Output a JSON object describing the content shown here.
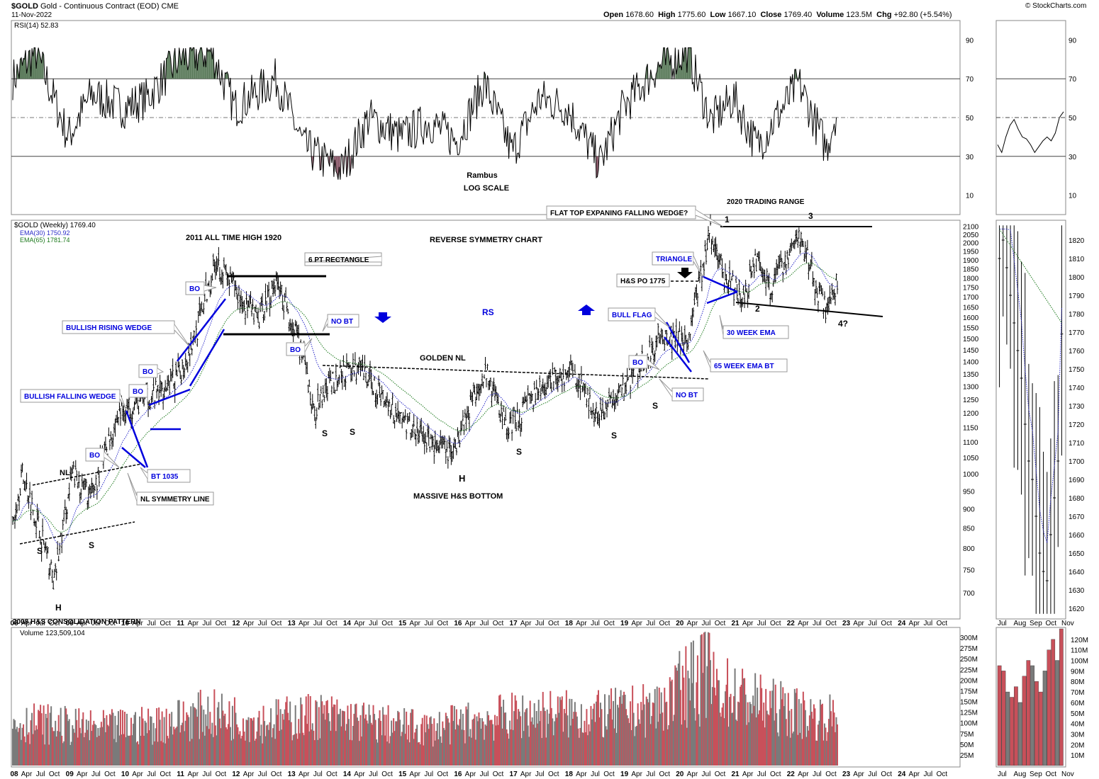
{
  "header": {
    "symbol": "$GOLD",
    "name": "Gold - Continuous Contract (EOD)",
    "exchange": "CME",
    "date": "11-Nov-2022",
    "open_label": "Open",
    "open": "1678.60",
    "high_label": "High",
    "high": "1775.60",
    "low_label": "Low",
    "low": "1667.10",
    "close_label": "Close",
    "close": "1769.40",
    "volume_label": "Volume",
    "volume": "123.5M",
    "chg_label": "Chg",
    "chg": "+92.80 (+5.54%)",
    "watermark": "© StockCharts.com"
  },
  "colors": {
    "price": "#000000",
    "annotation_blue": "#0000dd",
    "ema30": "#2a2ac8",
    "ema65": "#1e7a1e",
    "rsi_fill": "#5a7a5a",
    "rsi_oversold_fill": "#8a5a6a",
    "vol_up": "#7a7a7a",
    "vol_down": "#c8505a"
  },
  "chart_data": [
    {
      "type": "line",
      "panel": "rsi",
      "legend": "RSI(14) 52.83",
      "ylim": [
        0,
        100
      ],
      "yticks": [
        10,
        30,
        50,
        70,
        90
      ],
      "levels": [
        30,
        50,
        70
      ],
      "overlay_text": [
        "Rambus",
        "LOG SCALE"
      ],
      "x": [
        "2008-01",
        "2008-06",
        "2009-01",
        "2009-06",
        "2010-01",
        "2010-06",
        "2011-01",
        "2011-08",
        "2012-01",
        "2012-10",
        "2013-04",
        "2013-12",
        "2014-06",
        "2015-01",
        "2015-07",
        "2016-01",
        "2016-07",
        "2017-01",
        "2017-07",
        "2018-01",
        "2018-08",
        "2019-01",
        "2019-08",
        "2020-03",
        "2020-08",
        "2021-01",
        "2021-06",
        "2022-01",
        "2022-03",
        "2022-09",
        "2022-11"
      ],
      "values": [
        70,
        84,
        40,
        62,
        55,
        60,
        80,
        84,
        55,
        70,
        35,
        22,
        50,
        40,
        48,
        38,
        68,
        32,
        60,
        55,
        26,
        55,
        75,
        84,
        48,
        60,
        35,
        60,
        68,
        34,
        52
      ]
    },
    {
      "type": "candlestick",
      "panel": "price",
      "legend": "$GOLD (Weekly) 1769.40",
      "scale": "log",
      "ylim": [
        650,
        2130
      ],
      "yticks": [
        700,
        750,
        800,
        850,
        900,
        950,
        1000,
        1050,
        1100,
        1150,
        1200,
        1250,
        1300,
        1350,
        1400,
        1450,
        1500,
        1550,
        1600,
        1650,
        1700,
        1750,
        1800,
        1850,
        1900,
        1950,
        2000,
        2050,
        2100
      ],
      "xticks": [
        "08",
        "Apr",
        "Jul",
        "Oct",
        "09",
        "Apr",
        "Jul",
        "Oct",
        "10",
        "Apr",
        "Jul",
        "Oct",
        "11",
        "Apr",
        "Jul",
        "Oct",
        "12",
        "Apr",
        "Jul",
        "Oct",
        "13",
        "Apr",
        "Jul",
        "Oct",
        "14",
        "Apr",
        "Jul",
        "Oct",
        "15",
        "Apr",
        "Jul",
        "Oct",
        "16",
        "Apr",
        "Jul",
        "Oct",
        "17",
        "Apr",
        "Jul",
        "Oct",
        "18",
        "Apr",
        "Jul",
        "Oct",
        "19",
        "Apr",
        "Jul",
        "Oct",
        "20",
        "Apr",
        "Jul",
        "Oct",
        "21",
        "Apr",
        "Jul",
        "Oct",
        "22",
        "Apr",
        "Jul",
        "Oct",
        "23",
        "Apr",
        "Jul",
        "Oct",
        "24",
        "Apr",
        "Jul",
        "Oct"
      ],
      "x": [
        "2008-01",
        "2008-03",
        "2008-10",
        "2009-02",
        "2009-06",
        "2009-12",
        "2010-06",
        "2011-01",
        "2011-05",
        "2011-09",
        "2012-02",
        "2012-06",
        "2012-10",
        "2013-04",
        "2013-06",
        "2013-10",
        "2014-03",
        "2014-06",
        "2014-12",
        "2015-07",
        "2015-12",
        "2016-07",
        "2016-12",
        "2017-06",
        "2017-09",
        "2018-02",
        "2018-08",
        "2019-02",
        "2019-06",
        "2019-09",
        "2020-03",
        "2020-08",
        "2020-11",
        "2021-03",
        "2021-06",
        "2021-09",
        "2022-03",
        "2022-06",
        "2022-09",
        "2022-11"
      ],
      "values": [
        850,
        1000,
        720,
        1000,
        930,
        1200,
        1250,
        1340,
        1550,
        1900,
        1700,
        1580,
        1790,
        1400,
        1200,
        1320,
        1380,
        1330,
        1200,
        1100,
        1060,
        1370,
        1140,
        1260,
        1320,
        1360,
        1180,
        1320,
        1420,
        1520,
        1480,
        2070,
        1800,
        1690,
        1900,
        1750,
        2040,
        1810,
        1620,
        1769
      ],
      "ema30": {
        "legend": "EMA(30) 1750.92"
      },
      "ema65": {
        "legend": "EMA(65) 1781.74"
      },
      "annotations": [
        "2011 ALL TIME HIGH 1920",
        "6 PT RECTANGLE",
        "REVERSE SYMMETRY CHART",
        "RS",
        "GOLDEN NL",
        "MASSIVE H&S BOTTOM",
        "2020 TRADING RANGE",
        "FLAT TOP EXPANING FALLING WEDGE?",
        "TRIANGLE",
        "H&S PO 1775",
        "BULL FLAG",
        "30 WEEK EMA",
        "65 WEEK EMA BT",
        "NO BT",
        "BO",
        "BULLISH RISING WEDGE",
        "BULLISH FALLING WEDGE",
        "BT 1035",
        "NL SYMMETRY LINE",
        "NL",
        "S",
        "H",
        "1",
        "2",
        "3",
        "4?",
        "2008 H&S CONSOLIDATION PATTERN"
      ]
    },
    {
      "type": "bar",
      "panel": "volume",
      "legend": "Volume 123,509,104",
      "ylim": [
        0,
        320
      ],
      "yticks": [
        "25M",
        "50M",
        "75M",
        "100M",
        "125M",
        "150M",
        "175M",
        "200M",
        "225M",
        "250M",
        "275M",
        "300M"
      ],
      "x": [
        "2008",
        "2009",
        "2010",
        "2011",
        "2012",
        "2013",
        "2014",
        "2015",
        "2016",
        "2017",
        "2018",
        "2019",
        "2020",
        "2021",
        "2022"
      ],
      "values": [
        110,
        95,
        105,
        135,
        115,
        130,
        110,
        95,
        120,
        135,
        130,
        145,
        210,
        160,
        125
      ]
    },
    {
      "type": "candlestick",
      "panel": "daily-inset",
      "ylim": [
        1615,
        1830
      ],
      "yticks": [
        1620,
        1630,
        1640,
        1650,
        1660,
        1670,
        1680,
        1690,
        1700,
        1710,
        1720,
        1730,
        1740,
        1750,
        1760,
        1770,
        1780,
        1790,
        1800,
        1810,
        1820
      ],
      "xticks": [
        "Jul",
        "Aug",
        "Sep",
        "Oct",
        "Nov"
      ],
      "rsi_yticks": [
        10,
        30,
        50,
        70,
        90
      ],
      "rsi_values": [
        36,
        32,
        40,
        46,
        49,
        44,
        40,
        39,
        36,
        32,
        35,
        38,
        40,
        38,
        42,
        50,
        53
      ],
      "vol_yticks": [
        "10M",
        "20M",
        "30M",
        "40M",
        "50M",
        "60M",
        "70M",
        "80M",
        "90M",
        "100M",
        "110M",
        "120M"
      ],
      "vol_values": [
        95,
        90,
        70,
        65,
        75,
        60,
        85,
        100,
        95,
        80,
        70,
        90,
        110,
        120,
        100,
        130
      ]
    }
  ]
}
